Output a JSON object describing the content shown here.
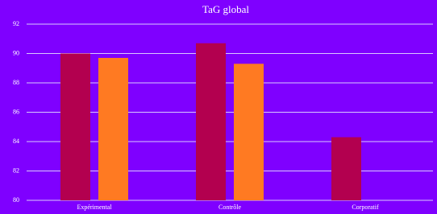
{
  "chart_data": {
    "type": "bar",
    "title": "TaG global",
    "categories": [
      "Expérimental",
      "Contrôle",
      "Corporatif"
    ],
    "series": [
      {
        "color": "#b3004f",
        "values": [
          90.0,
          90.7,
          84.3
        ]
      },
      {
        "color": "#ff7a22",
        "values": [
          89.7,
          89.3,
          null
        ]
      }
    ],
    "ylim": [
      80,
      92
    ],
    "yticks": [
      80,
      82,
      84,
      86,
      88,
      90,
      92
    ],
    "grid": true,
    "background": "#7f00ff"
  }
}
